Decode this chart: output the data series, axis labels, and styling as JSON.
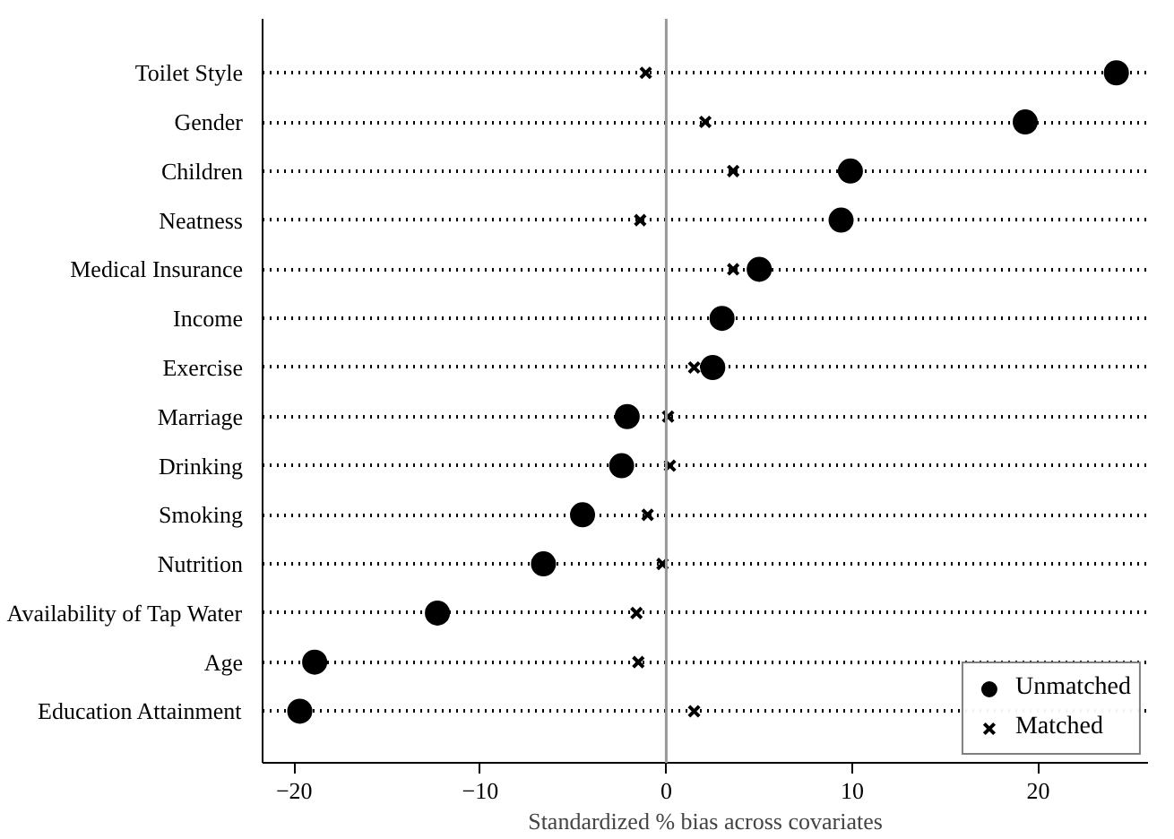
{
  "chart_data": {
    "type": "scatter",
    "xlabel": "Standardized % bias across covariates",
    "categories": [
      "Toilet Style",
      "Gender",
      "Children",
      "Neatness",
      "Medical Insurance",
      "Income",
      "Exercise",
      "Marriage",
      "Drinking",
      "Smoking",
      "Nutrition",
      "Availability of Tap Water",
      "Age",
      "Education Attainment"
    ],
    "orientation": "horizontal",
    "series": [
      {
        "name": "Unmatched",
        "color": "#000000",
        "marker": "circle",
        "values": [
          24.2,
          19.3,
          9.9,
          9.4,
          5.0,
          3.0,
          2.5,
          -2.1,
          -2.4,
          -4.5,
          -6.6,
          -12.3,
          -18.9,
          -19.7
        ]
      },
      {
        "name": "Matched",
        "color": "#000000",
        "marker": "cross",
        "values": [
          -1.1,
          2.1,
          3.6,
          -1.4,
          3.6,
          null,
          1.5,
          0.1,
          0.2,
          -1.0,
          -0.2,
          -1.6,
          -1.5,
          1.5
        ]
      }
    ],
    "xlim": [
      -21.7,
      25.9
    ],
    "xticks": [
      -20,
      -10,
      0,
      10,
      20
    ],
    "ref_lines": [
      {
        "axis": "x",
        "value": 0,
        "color": "#999999"
      }
    ],
    "grid": "y",
    "legend": "bottom right"
  }
}
